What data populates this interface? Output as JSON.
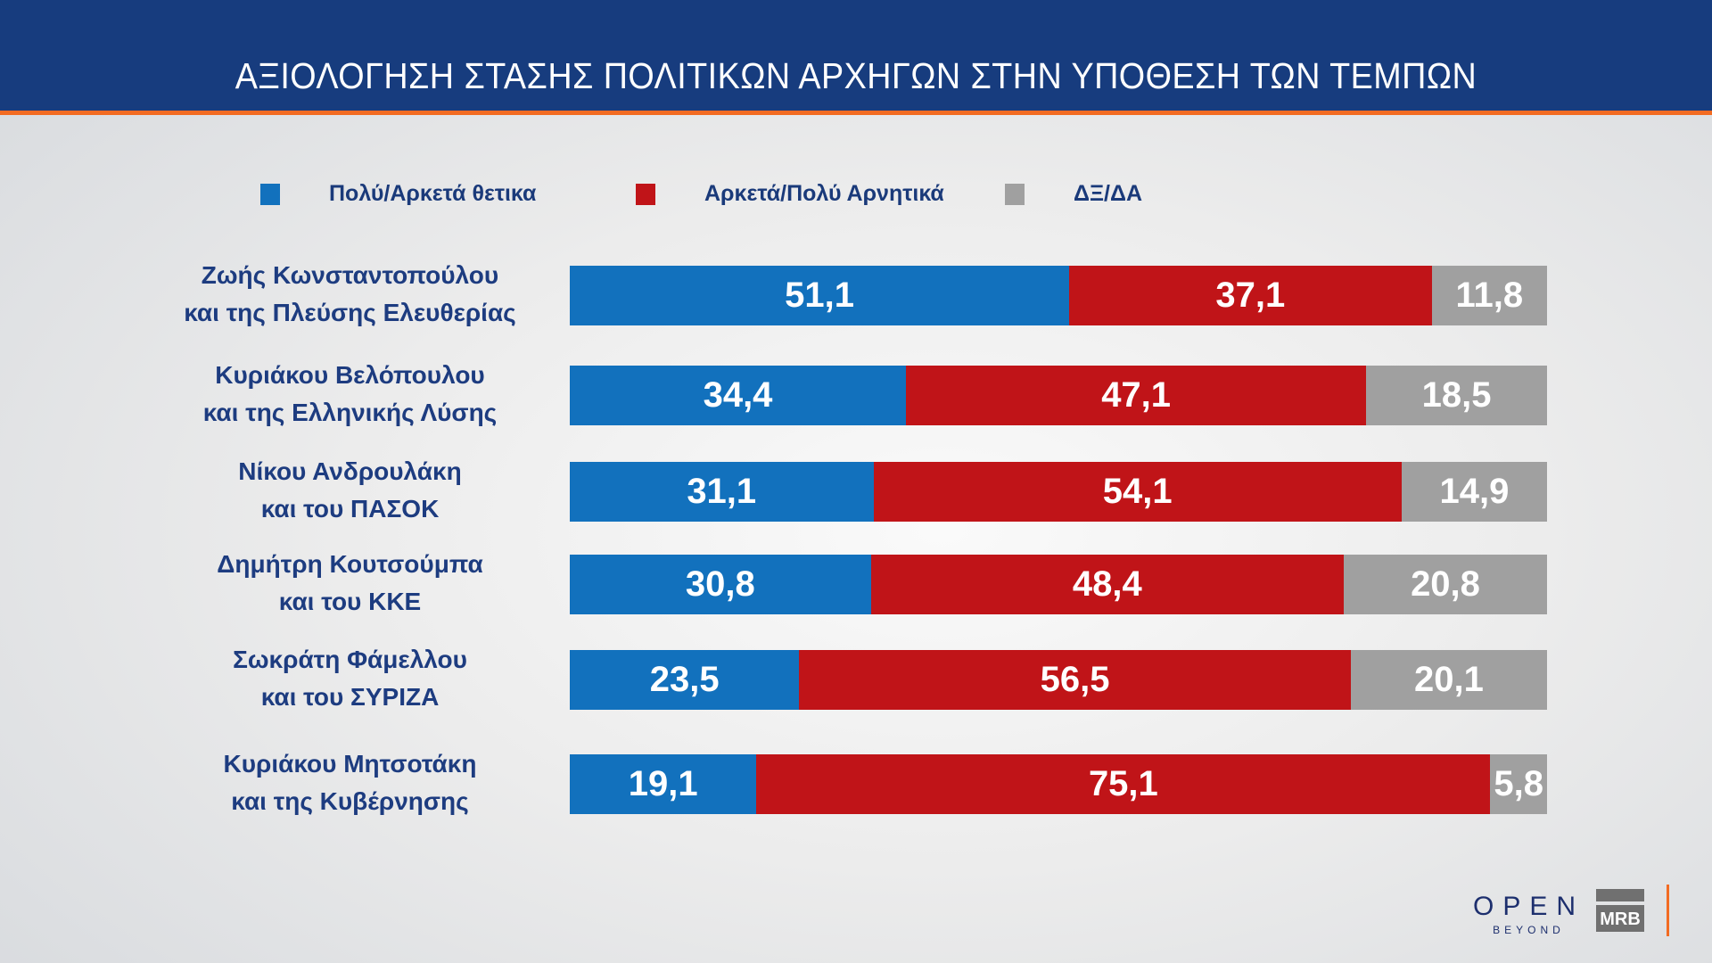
{
  "header": {
    "title": "ΑΞΙΟΛΟΓΗΣΗ ΣΤΑΣΗΣ ΠΟΛΙΤΙΚΩΝ ΑΡΧΗΓΩΝ ΣΤΗΝ ΥΠΟΘΕΣΗ ΤΩΝ ΤΕΜΠΩΝ"
  },
  "colors": {
    "positive": "#1271bd",
    "negative": "#c01418",
    "dk": "#a0a0a0",
    "header": "#173c7e",
    "accent": "#f26b22"
  },
  "chart_data": {
    "type": "bar",
    "stacked": true,
    "orientation": "horizontal",
    "title": "ΑΞΙΟΛΟΓΗΣΗ ΣΤΑΣΗΣ ΠΟΛΙΤΙΚΩΝ ΑΡΧΗΓΩΝ ΣΤΗΝ ΥΠΟΘΕΣΗ ΤΩΝ ΤΕΜΠΩΝ",
    "legend_placement": "top",
    "categories": [
      {
        "line1": "Ζωής Κωνσταντοπούλου",
        "line2": "και της Πλεύσης Ελευθερίας"
      },
      {
        "line1": "Κυριάκου Βελόπουλου",
        "line2": "και της Ελληνικής Λύσης"
      },
      {
        "line1": "Νίκου Ανδρουλάκη",
        "line2": "και του ΠΑΣΟΚ"
      },
      {
        "line1": "Δημήτρη Κουτσούμπα",
        "line2": "και του ΚΚΕ"
      },
      {
        "line1": "Σωκράτη Φάμελλου",
        "line2": "και του ΣΥΡΙΖΑ"
      },
      {
        "line1": "Κυριάκου Μητσοτάκη",
        "line2": "και της Κυβέρνησης"
      }
    ],
    "series": [
      {
        "name": "Πολύ/Αρκετά θετικα",
        "color": "#1271bd",
        "values": [
          51.1,
          34.4,
          31.1,
          30.8,
          23.5,
          19.1
        ],
        "labels": [
          "51,1",
          "34,4",
          "31,1",
          "30,8",
          "23,5",
          "19,1"
        ]
      },
      {
        "name": "Αρκετά/Πολύ Αρνητικά",
        "color": "#c01418",
        "values": [
          37.1,
          47.1,
          54.1,
          48.4,
          56.5,
          75.1
        ],
        "labels": [
          "37,1",
          "47,1",
          "54,1",
          "48,4",
          "56,5",
          "75,1"
        ]
      },
      {
        "name": "ΔΞ/ΔΑ",
        "color": "#a0a0a0",
        "values": [
          11.8,
          18.5,
          14.9,
          20.8,
          20.1,
          5.8
        ],
        "labels": [
          "11,8",
          "18,5",
          "14,9",
          "20,8",
          "20,1",
          "5,8"
        ]
      }
    ],
    "xlim": [
      0,
      100
    ]
  },
  "logos": {
    "open": "OPEN",
    "open_sub": "BEYOND",
    "mrb": "MRB"
  }
}
